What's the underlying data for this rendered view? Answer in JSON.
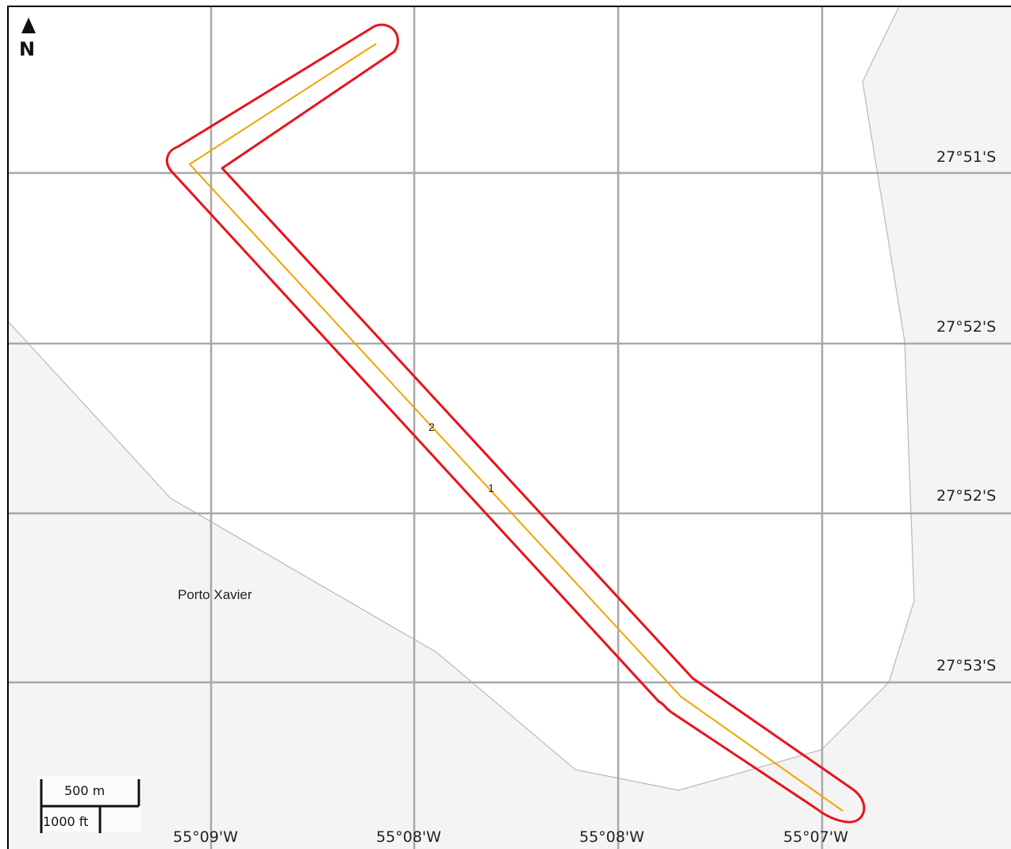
{
  "map": {
    "latitude_labels": [
      "27°51'S",
      "27°52'S",
      "27°52'S",
      "27°53'S"
    ],
    "longitude_labels": [
      "55°09'W",
      "55°08'W",
      "55°08'W",
      "55°07'W"
    ],
    "place_label": "Porto Xavier",
    "route_markers": [
      "2",
      "1"
    ],
    "north_arrow_label": "N",
    "scale_bar": {
      "metric_label": "500 m",
      "imperial_label": "1000 ft"
    },
    "colors": {
      "land_fill": "#f4f4f4",
      "water_fill": "#ffffff",
      "shoreline": "#b8b8b8",
      "grid": "#a8a8a8",
      "route_line": "#f5a300",
      "buffer_outline": "#e8141c",
      "frame": "#000000"
    }
  }
}
